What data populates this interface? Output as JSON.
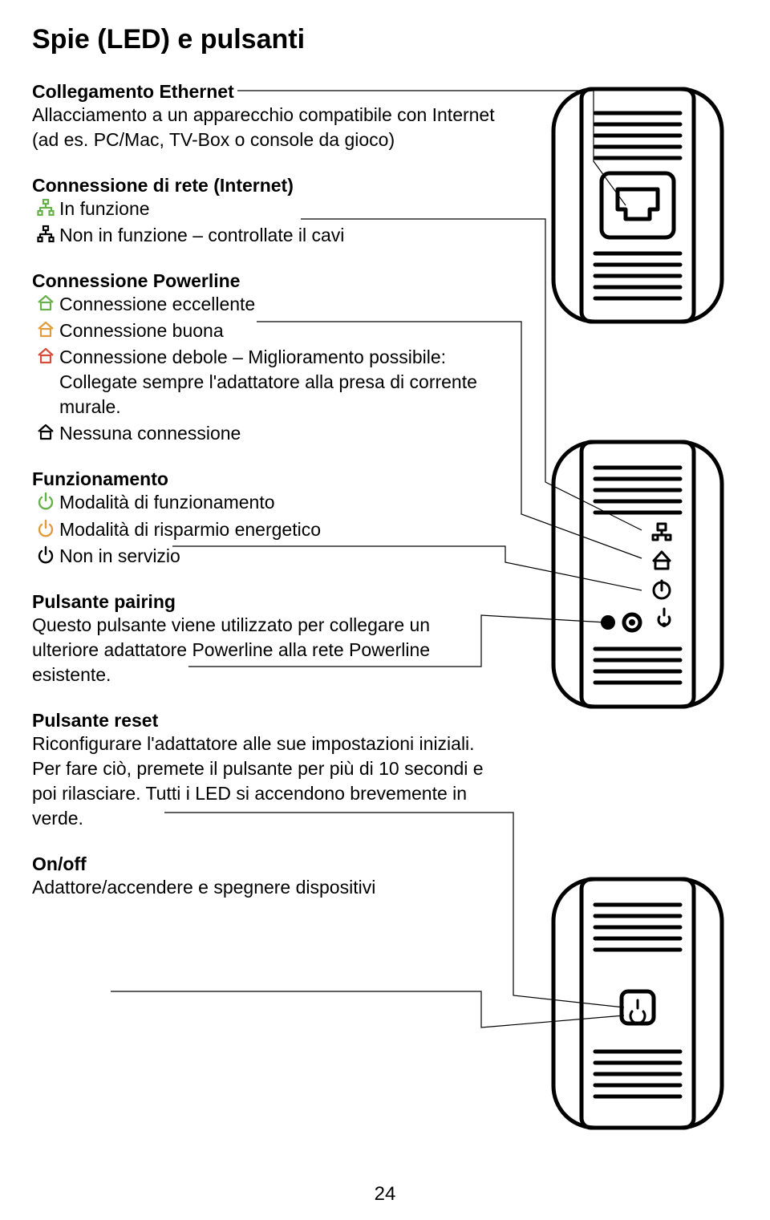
{
  "page": {
    "title": "Spie (LED) e pulsanti",
    "number": "24",
    "colors": {
      "text": "#000000",
      "bg": "#ffffff",
      "icon_green": "#68b04a",
      "icon_orange": "#e29a3a",
      "icon_red": "#d94c3a",
      "stroke": "#000000"
    }
  },
  "sections": {
    "ethernet": {
      "heading": "Collegamento Ethernet",
      "body": "Allacciamento a un apparecchio compatibile con Internet (ad es. PC/Mac, TV-Box o console da gioco)"
    },
    "internet": {
      "heading": "Connessione di rete (Internet)",
      "items": [
        {
          "icon": "network-green",
          "color": "#68b04a",
          "text": "In funzione"
        },
        {
          "icon": "network-black",
          "color": "#000000",
          "text": "Non in funzione – controllate il cavi"
        }
      ]
    },
    "powerline": {
      "heading": "Connessione Powerline",
      "items": [
        {
          "icon": "house-green",
          "color": "#68b04a",
          "text": "Connessione eccellente"
        },
        {
          "icon": "house-orange",
          "color": "#e29a3a",
          "text": "Connessione buona"
        },
        {
          "icon": "house-red",
          "color": "#d94c3a",
          "text": "Connessione debole – Miglioramento possibile: Collegate sempre l'adattatore alla presa di corrente murale."
        },
        {
          "icon": "house-black",
          "color": "#000000",
          "text": "Nessuna connessione"
        }
      ]
    },
    "operation": {
      "heading": "Funzionamento",
      "items": [
        {
          "icon": "power-green",
          "color": "#68b04a",
          "text": "Modalità di funzionamento"
        },
        {
          "icon": "power-orange",
          "color": "#e29a3a",
          "text": "Modalità di risparmio energetico"
        },
        {
          "icon": "power-black",
          "color": "#000000",
          "text": "Non in servizio"
        }
      ]
    },
    "pairing": {
      "heading": "Pulsante pairing",
      "body": "Questo pulsante viene utilizzato per collegare un ulteriore adattatore Powerline alla rete Powerline esistente."
    },
    "reset": {
      "heading": "Pulsante reset",
      "body": "Riconfigurare l'adattatore alle sue impostazioni iniziali. Per fare ciò, premete il pulsante per più di 10 secondi e poi rilasciare. Tutti i LED si accendono brevemente in verde."
    },
    "onoff": {
      "heading": "On/off",
      "body": "Adattore/accendere e spegnere dispositivi"
    }
  }
}
